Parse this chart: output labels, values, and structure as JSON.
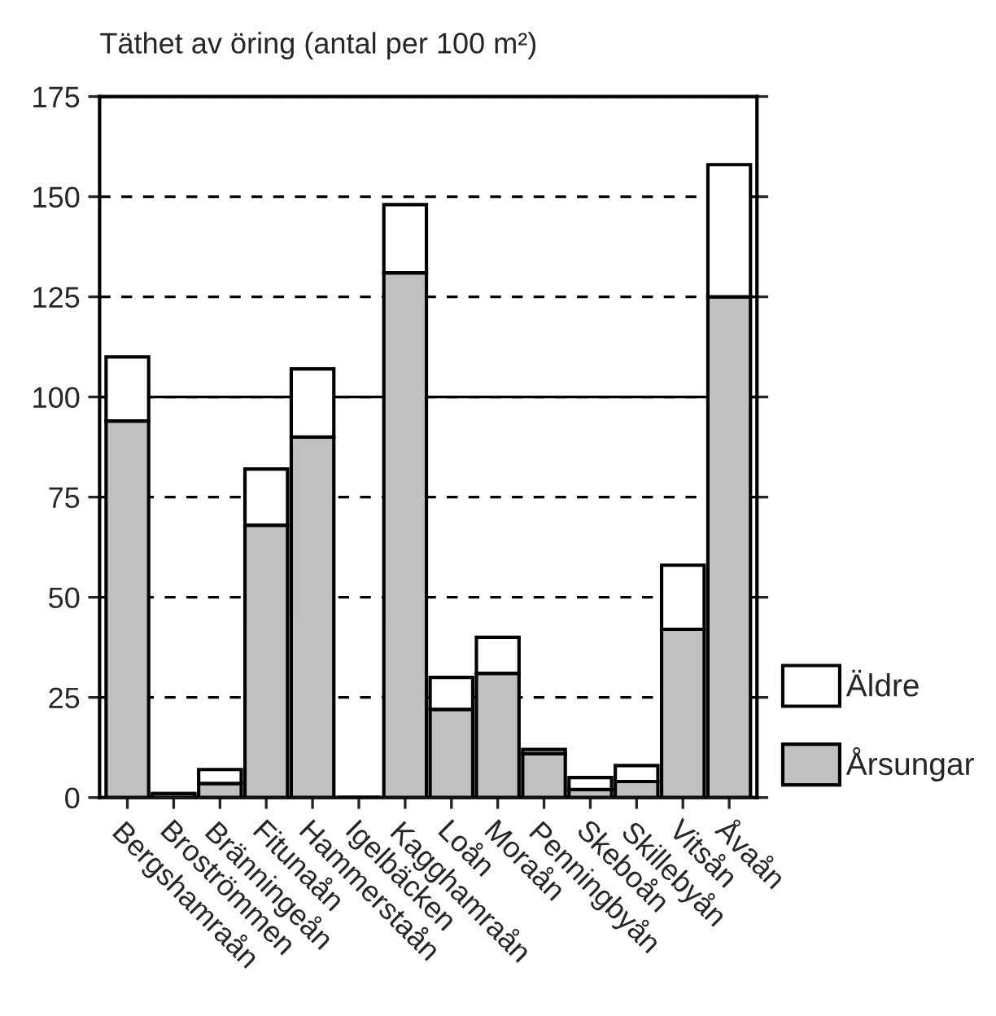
{
  "chart_data": {
    "type": "bar",
    "title": "Täthet av öring (antal per 100 m²)",
    "categories": [
      "Bergshamraån",
      "Broströmmen",
      "Bränningeån",
      "Fitunaån",
      "Hammerstaån",
      "Igelbäcken",
      "Kagghamraån",
      "Loån",
      "Moraån",
      "Penningbyån",
      "Skeboån",
      "Skillebyån",
      "Vitsån",
      "Åvaån"
    ],
    "stacked": true,
    "series": [
      {
        "name": "Årsungar",
        "color": "#c0c0c0",
        "values": [
          94,
          1,
          3.5,
          68,
          90,
          0,
          131,
          22,
          31,
          11,
          2,
          4,
          42,
          125
        ]
      },
      {
        "name": "Äldre",
        "color": "#ffffff",
        "values": [
          16,
          null,
          3.5,
          14,
          17,
          0,
          17,
          8,
          9,
          1,
          3,
          4,
          16,
          33
        ]
      }
    ],
    "ylim": [
      0,
      175
    ],
    "yticks": [
      0,
      25,
      50,
      75,
      100,
      125,
      150,
      175
    ],
    "grid": "y",
    "ref_lines": [
      {
        "axis": "y",
        "value": 100,
        "label": null
      }
    ],
    "legend": "bottom right"
  }
}
